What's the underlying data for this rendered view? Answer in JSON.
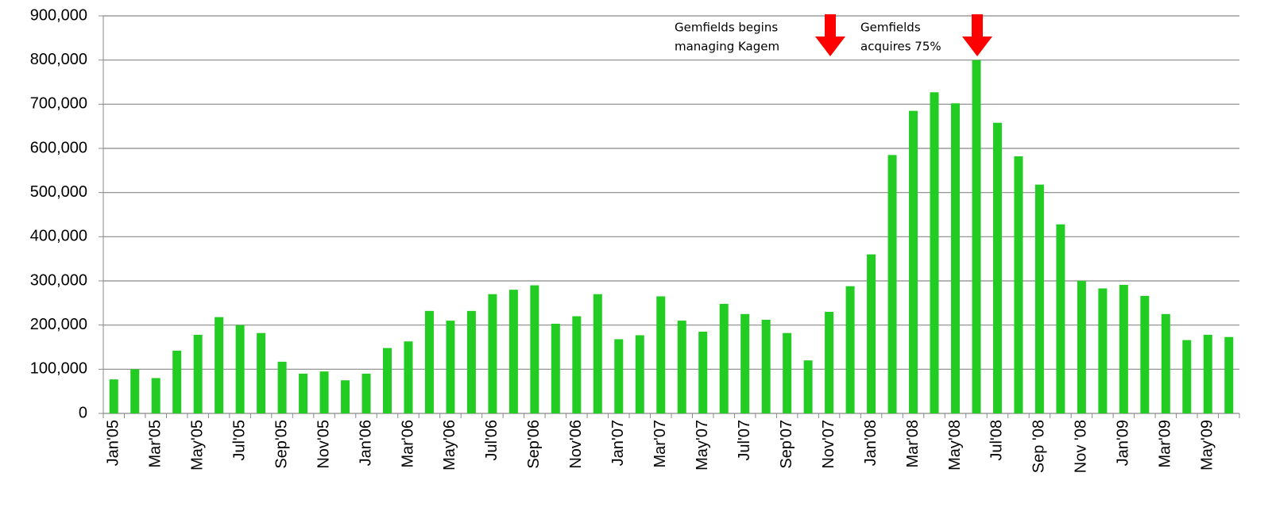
{
  "chart_data": {
    "type": "bar",
    "categories": [
      "Jan'05",
      null,
      "Mar'05",
      null,
      "May'05",
      null,
      "Jul'05",
      null,
      "Sep'05",
      null,
      "Nov'05",
      null,
      "Jan'06",
      null,
      "Mar'06",
      null,
      "May'06",
      null,
      "Jul'06",
      null,
      "Sep'06",
      null,
      "Nov'06",
      null,
      "Jan'07",
      null,
      "Mar'07",
      null,
      "May'07",
      null,
      "Jul'07",
      null,
      "Sep'07",
      null,
      "Nov'07",
      null,
      "Jan'08",
      null,
      "Mar'08",
      null,
      "May'08",
      null,
      "Jul'08",
      null,
      "Sep '08",
      null,
      "Nov '08",
      null,
      "Jan'09",
      null,
      "Mar'09",
      null,
      "May'09",
      null
    ],
    "values": [
      77000,
      100000,
      80000,
      142000,
      178000,
      218000,
      200000,
      182000,
      117000,
      90000,
      95000,
      75000,
      90000,
      148000,
      163000,
      232000,
      210000,
      232000,
      270000,
      280000,
      290000,
      203000,
      220000,
      270000,
      168000,
      177000,
      265000,
      210000,
      185000,
      248000,
      225000,
      212000,
      182000,
      120000,
      230000,
      288000,
      360000,
      585000,
      685000,
      727000,
      702000,
      800000,
      658000,
      582000,
      518000,
      428000,
      300000,
      283000,
      291000,
      266000,
      225000,
      166000,
      178000,
      173000
    ],
    "color": "#22cc22",
    "ylim": [
      0,
      900000
    ],
    "yticks": [
      0,
      {
        "value": 100000,
        "label": "100,000"
      },
      {
        "value": 200000,
        "label": "200,000"
      },
      {
        "value": 300000,
        "label": "300,000"
      },
      {
        "value": 400000,
        "label": "400,000"
      },
      {
        "value": 500000,
        "label": "500,000"
      },
      {
        "value": 600000,
        "label": "600,000"
      },
      {
        "value": 700000,
        "label": "700,000"
      },
      {
        "value": 800000,
        "label": "800,000"
      },
      {
        "value": 900000,
        "label": "900,000"
      }
    ],
    "grid": true,
    "annotations": [
      {
        "lines": [
          "Gemfields begins",
          "managing Kagem"
        ]
      },
      {
        "lines": [
          "Gemfields",
          "acquires 75%"
        ]
      }
    ]
  }
}
